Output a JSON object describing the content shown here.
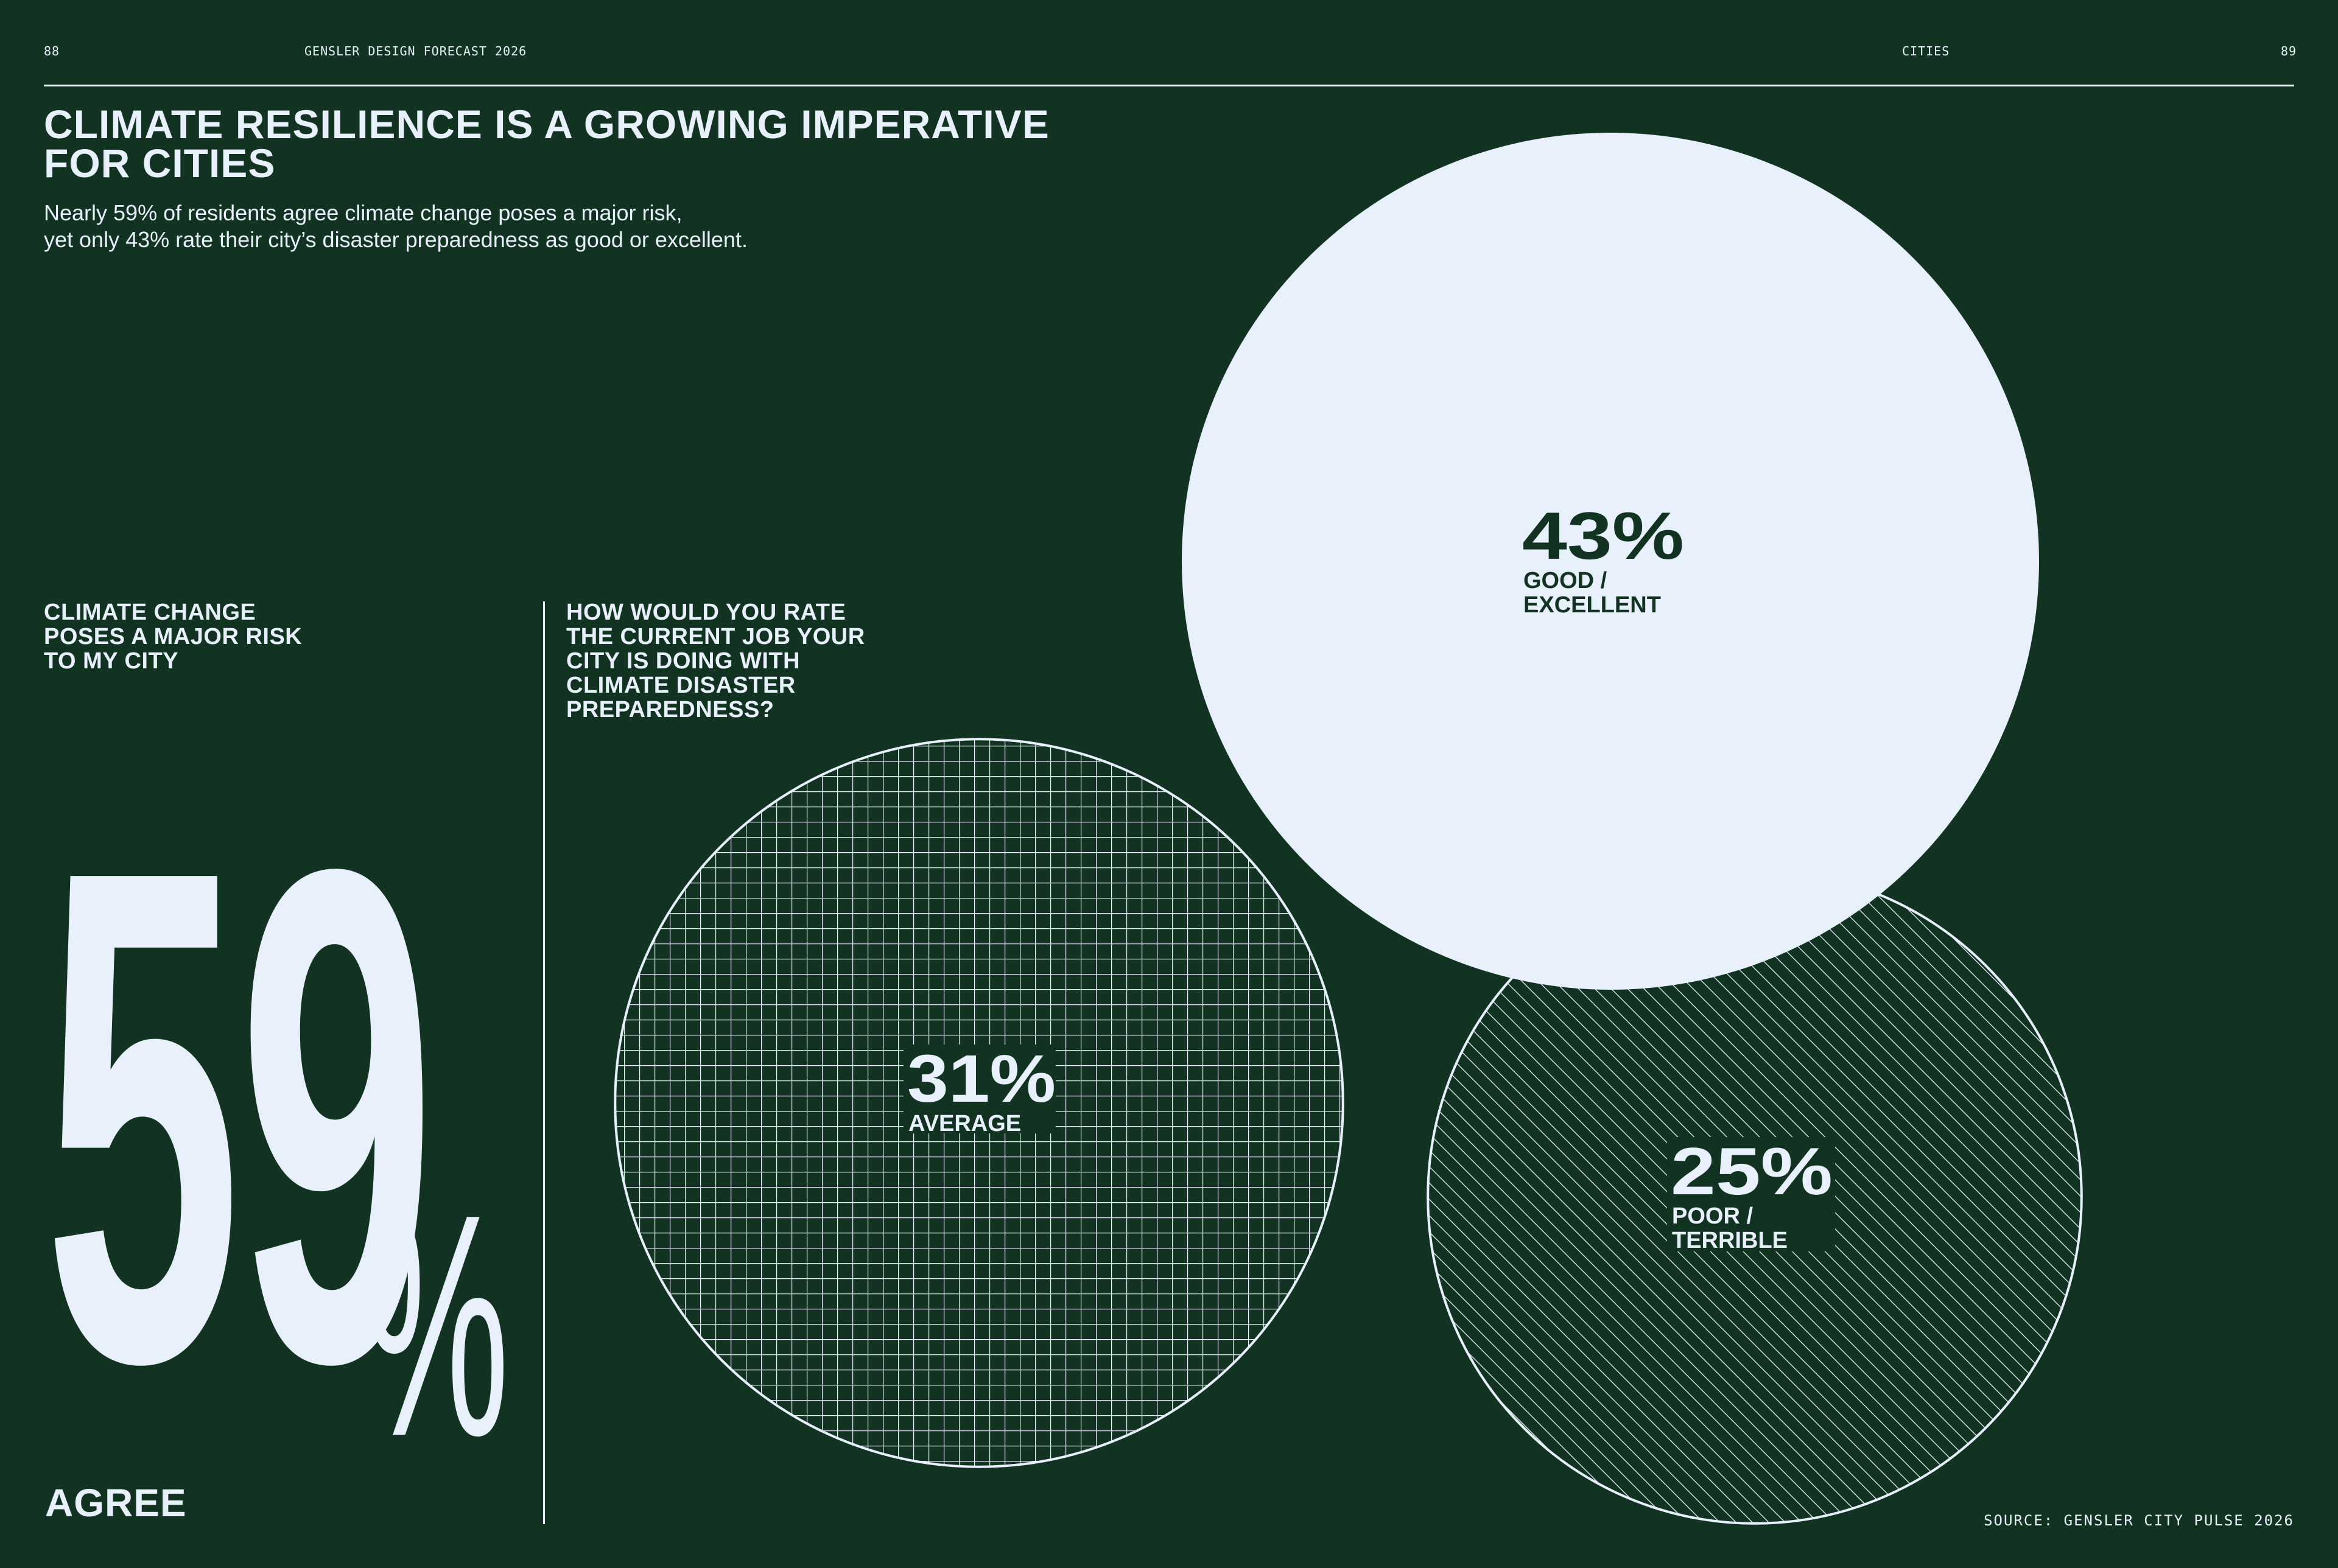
{
  "header": {
    "page_left": "88",
    "publication": "GENSLER DESIGN FORECAST 2026",
    "section": "CITIES",
    "page_right": "89"
  },
  "title": "CLIMATE RESILIENCE IS A GROWING IMPERATIVE FOR CITIES",
  "subtitle_line1": "Nearly 59% of residents agree climate change poses a major risk,",
  "subtitle_line2": "yet only 43% rate their city’s disaster preparedness as good or excellent.",
  "left_stat": {
    "question_lines": [
      "CLIMATE CHANGE",
      "POSES A MAJOR RISK",
      "TO MY CITY"
    ],
    "number": "59",
    "percent_sign": "%",
    "label": "AGREE"
  },
  "right_question_lines": [
    "HOW WOULD YOU RATE",
    "THE CURRENT JOB YOUR",
    "CITY IS DOING WITH",
    "CLIMATE DISASTER",
    "PREPAREDNESS?"
  ],
  "source": "SOURCE: GENSLER CITY PULSE 2026",
  "colors": {
    "background": "#133322",
    "light": "#e8f1fb",
    "dark_text": "#133322"
  },
  "chart_data": [
    {
      "type": "bubble",
      "title": "CLIMATE CHANGE POSES A MAJOR RISK TO MY CITY",
      "categories": [
        "AGREE"
      ],
      "values": [
        59
      ]
    },
    {
      "type": "bubble",
      "title": "HOW WOULD YOU RATE THE CURRENT JOB YOUR CITY IS DOING WITH CLIMATE DISASTER PREPAREDNESS?",
      "categories": [
        "GOOD / EXCELLENT",
        "AVERAGE",
        "POOR / TERRIBLE"
      ],
      "values": [
        43,
        31,
        25
      ],
      "value_labels": [
        "43%",
        "31%",
        "25%"
      ],
      "label_lines": [
        [
          "GOOD /",
          "EXCELLENT"
        ],
        [
          "AVERAGE"
        ],
        [
          "POOR /",
          "TERRIBLE"
        ]
      ],
      "fills": [
        "solid",
        "grid",
        "hatch"
      ]
    }
  ]
}
